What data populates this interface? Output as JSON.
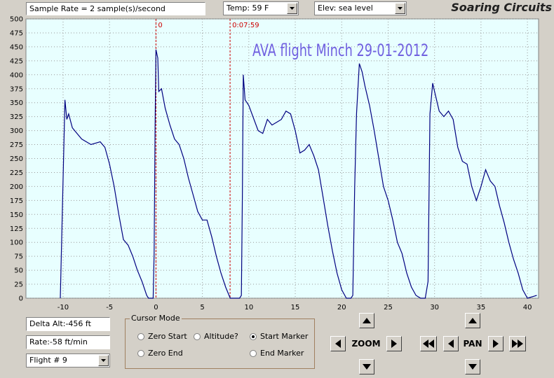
{
  "header": {
    "sample_rate": "Sample Rate =  2 sample(s)/second",
    "temp": "Temp:  59 F",
    "elev": "Elev: sea level",
    "brand": "Soaring Circuits"
  },
  "chart_data": {
    "type": "line",
    "title": "AVA flight Minch 29-01-2012",
    "x": [
      -10.3,
      -9.8,
      -9.6,
      -9.4,
      -9,
      -8.5,
      -8,
      -7,
      -6,
      -5.5,
      -5,
      -4.5,
      -4,
      -3.5,
      -3,
      -2.5,
      -2,
      -1.5,
      -1,
      -0.8,
      -0.3,
      -0.2,
      -0.1,
      0,
      0.2,
      0.3,
      0.6,
      1,
      1.5,
      2,
      2.5,
      3,
      3.5,
      4,
      4.5,
      5,
      5.5,
      6,
      6.5,
      7,
      7.5,
      8,
      8.5,
      9,
      9.2,
      9.3,
      9.4,
      9.6,
      10,
      11,
      11.5,
      12,
      12.5,
      13,
      13.5,
      14,
      14.5,
      15,
      15.5,
      16,
      16.5,
      17,
      17.5,
      18,
      18.5,
      19,
      19.5,
      20,
      20.5,
      21,
      21.2,
      21.4,
      21.6,
      21.9,
      22.2,
      22.5,
      23,
      23.5,
      24,
      24.5,
      25,
      25.5,
      26,
      26.5,
      27,
      27.5,
      28,
      28.5,
      29,
      29.3,
      29.5,
      29.8,
      30,
      30.5,
      31,
      31.5,
      32,
      32.5,
      33,
      33.5,
      34,
      34.5,
      35,
      35.5,
      36,
      36.5,
      37,
      37.5,
      38,
      38.5,
      39,
      39.5,
      40,
      41
    ],
    "series": [
      {
        "color": "#000080",
        "values": [
          0,
          355,
          320,
          330,
          305,
          295,
          285,
          275,
          280,
          270,
          240,
          200,
          150,
          105,
          95,
          75,
          50,
          30,
          5,
          0,
          0,
          80,
          300,
          445,
          430,
          370,
          375,
          340,
          310,
          285,
          275,
          250,
          215,
          185,
          155,
          140,
          140,
          110,
          75,
          45,
          20,
          0,
          0,
          0,
          5,
          180,
          400,
          355,
          345,
          300,
          295,
          320,
          310,
          315,
          320,
          335,
          330,
          300,
          260,
          265,
          275,
          255,
          230,
          180,
          130,
          85,
          45,
          15,
          0,
          0,
          5,
          200,
          330,
          420,
          405,
          380,
          345,
          300,
          250,
          200,
          175,
          140,
          100,
          80,
          45,
          20,
          5,
          0,
          0,
          30,
          330,
          385,
          370,
          335,
          325,
          335,
          320,
          270,
          245,
          240,
          200,
          175,
          200,
          230,
          210,
          200,
          165,
          135,
          100,
          70,
          45,
          15,
          0,
          5
        ]
      }
    ],
    "markers": [
      {
        "x": 0,
        "label": "0",
        "color": "#cc0000"
      },
      {
        "x": 7.98,
        "label": "0:07:59",
        "color": "#cc0000"
      }
    ],
    "xlim": [
      -14,
      41.2
    ],
    "ylim": [
      0,
      500
    ],
    "xticks": [
      -10,
      -5,
      0,
      5,
      10,
      15,
      20,
      25,
      30,
      35,
      40
    ],
    "yticks": [
      0,
      25,
      50,
      75,
      100,
      125,
      150,
      175,
      200,
      225,
      250,
      275,
      300,
      325,
      350,
      375,
      400,
      425,
      450,
      475,
      500
    ],
    "grid": true
  },
  "controls": {
    "delta_alt": "Delta Alt:-456 ft",
    "rate": "Rate:-58 ft/min",
    "flight": "Flight # 9",
    "cursor_mode": {
      "title": "Cursor Mode",
      "options": [
        "Zero Start",
        "Altitude?",
        "Start Marker",
        "Zero End",
        "End Marker"
      ]
    },
    "zoom": "ZOOM",
    "pan": "PAN"
  }
}
